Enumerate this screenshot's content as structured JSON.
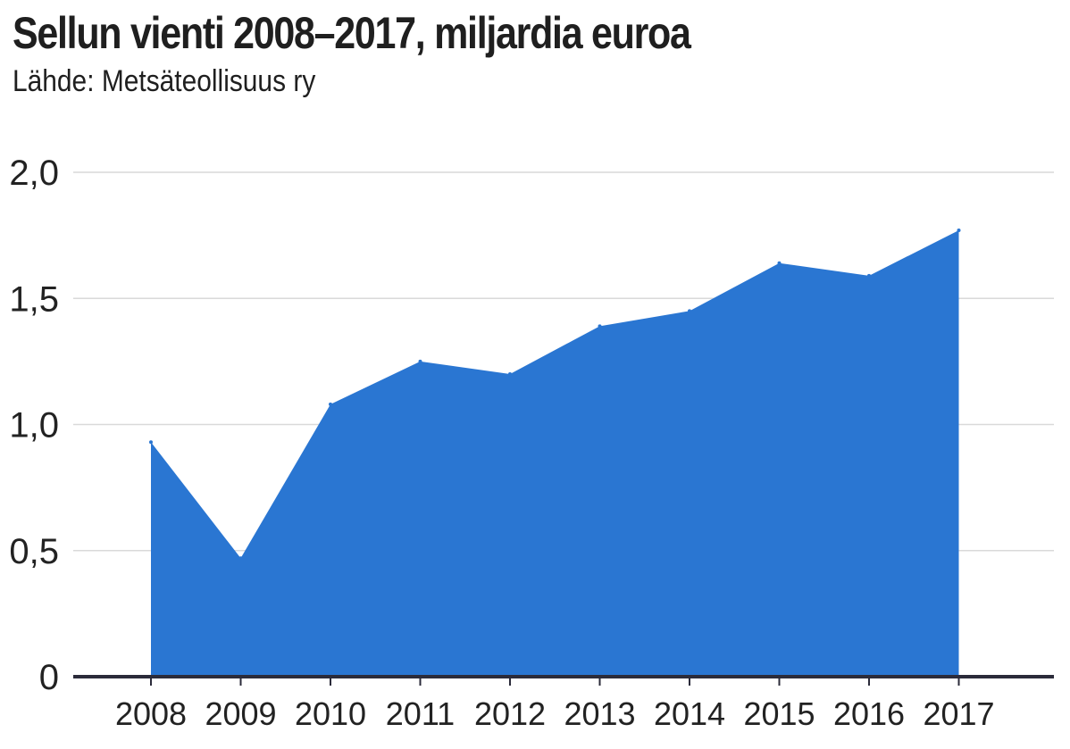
{
  "header": {
    "title": "Sellun vienti 2008–2017, miljardia euroa",
    "subtitle": "Lähde: Metsäteollisuus ry"
  },
  "colors": {
    "area": "#2a76d2",
    "grid": "#d9d9d9",
    "axis": "#2b2b3a",
    "text": "#222222"
  },
  "chart_data": {
    "type": "area",
    "title": "Sellun vienti 2008–2017, miljardia euroa",
    "subtitle": "Lähde: Metsäteollisuus ry",
    "x": [
      "2008",
      "2009",
      "2010",
      "2011",
      "2012",
      "2013",
      "2014",
      "2015",
      "2016",
      "2017"
    ],
    "values": [
      0.93,
      0.47,
      1.08,
      1.25,
      1.2,
      1.39,
      1.45,
      1.64,
      1.59,
      1.77
    ],
    "ylim": [
      0,
      2.0
    ],
    "yticks": [
      0,
      0.5,
      1.0,
      1.5,
      2.0
    ],
    "ytick_labels": [
      "0",
      "0,5",
      "1,0",
      "1,5",
      "2,0"
    ],
    "xlabel": "",
    "ylabel": "",
    "grid": true,
    "legend": "none"
  }
}
